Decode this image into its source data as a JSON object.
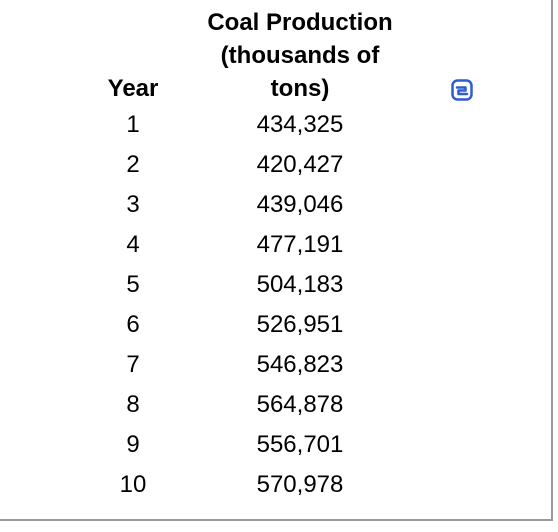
{
  "table": {
    "headers": {
      "year": "Year",
      "coal_line1": "Coal Production",
      "coal_line2": "(thousands of",
      "coal_line3": "tons)"
    },
    "rows": [
      {
        "year": "1",
        "coal": "434,325"
      },
      {
        "year": "2",
        "coal": "420,427"
      },
      {
        "year": "3",
        "coal": "439,046"
      },
      {
        "year": "4",
        "coal": "477,191"
      },
      {
        "year": "5",
        "coal": "504,183"
      },
      {
        "year": "6",
        "coal": "526,951"
      },
      {
        "year": "7",
        "coal": "546,823"
      },
      {
        "year": "8",
        "coal": "564,878"
      },
      {
        "year": "9",
        "coal": "556,701"
      },
      {
        "year": "10",
        "coal": "570,978"
      }
    ]
  },
  "icons": {
    "copy": "copy-table-icon",
    "accent_color": "#2f5bd3"
  }
}
